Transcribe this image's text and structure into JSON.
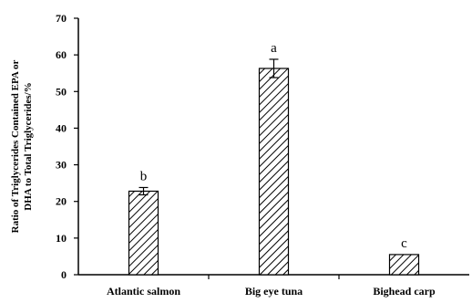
{
  "chart_data": {
    "type": "bar",
    "title": "",
    "xlabel": "",
    "ylabel_lines": [
      "Ratio of Triglycerides Contained EPA or",
      "DHA to Total Triglycerides/%"
    ],
    "categories": [
      "Atlantic salmon",
      "Big eye tuna",
      "Bighead carp"
    ],
    "values": [
      22.8,
      56.3,
      5.5
    ],
    "errors": [
      1.0,
      2.5,
      0.0
    ],
    "significance_labels": [
      "b",
      "a",
      "c"
    ],
    "ylim": [
      0,
      70
    ],
    "yticks": [
      "0",
      "10",
      "20",
      "30",
      "40",
      "50",
      "60",
      "70"
    ],
    "grid": false,
    "bar_fill": "diagonal-hatch",
    "colors": {
      "axis": "#000000",
      "bar_stroke": "#000000",
      "hatch": "#000000",
      "background": "#ffffff"
    }
  }
}
